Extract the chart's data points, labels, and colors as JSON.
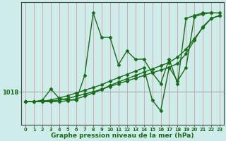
{
  "xlabel": "Graphe pression niveau de la mer (hPa)",
  "bg_color": "#cdecea",
  "line_color": "#1a6b1a",
  "tick_label_color": "#1a6b1a",
  "xlabel_color": "#1a6b1a",
  "ytick_value": 1018,
  "ytick_label": "1018",
  "xlim": [
    -0.5,
    23.5
  ],
  "ylim": [
    1012.0,
    1034.5
  ],
  "series": [
    {
      "x": [
        0,
        1,
        2,
        3,
        4,
        5,
        6,
        7,
        8,
        9,
        10,
        11,
        12,
        13,
        14,
        15,
        16,
        17,
        18,
        19,
        20,
        21,
        22
      ],
      "y": [
        1016.2,
        1016.2,
        1016.5,
        1018.5,
        1016.8,
        1016.5,
        1016.5,
        1021.0,
        1032.5,
        1028.0,
        1028.0,
        1023.0,
        1025.5,
        1024.0,
        1024.0,
        1021.5,
        1019.5,
        1024.0,
        1019.5,
        1031.5,
        1032.0,
        1032.5,
        1032.5
      ]
    },
    {
      "x": [
        0,
        1,
        2,
        3,
        4,
        5,
        6,
        7,
        8,
        9,
        10,
        11,
        12,
        13,
        14,
        15,
        16,
        17,
        18,
        19,
        20,
        21,
        22,
        23
      ],
      "y": [
        1016.2,
        1016.2,
        1016.2,
        1016.2,
        1016.2,
        1016.4,
        1016.7,
        1017.2,
        1017.8,
        1018.4,
        1019.2,
        1019.8,
        1020.4,
        1021.0,
        1021.6,
        1022.2,
        1022.8,
        1023.4,
        1024.4,
        1025.8,
        1027.8,
        1029.8,
        1031.5,
        1032.0
      ]
    },
    {
      "x": [
        0,
        1,
        2,
        3,
        4,
        5,
        6,
        7,
        8,
        9,
        10,
        11,
        12,
        13,
        14,
        15,
        16,
        17,
        18,
        19,
        20,
        21,
        22,
        23
      ],
      "y": [
        1016.2,
        1016.2,
        1016.2,
        1016.3,
        1016.5,
        1016.8,
        1017.2,
        1017.6,
        1018.0,
        1018.5,
        1019.0,
        1019.5,
        1020.0,
        1020.5,
        1021.0,
        1021.5,
        1022.0,
        1022.5,
        1023.2,
        1025.0,
        1027.5,
        1030.0,
        1031.5,
        1032.0
      ]
    },
    {
      "x": [
        0,
        1,
        2,
        3,
        4,
        5,
        6,
        7,
        8,
        9,
        10,
        11,
        12,
        13,
        14,
        15,
        16,
        17,
        18,
        19,
        20,
        21,
        22,
        23
      ],
      "y": [
        1016.2,
        1016.2,
        1016.3,
        1016.5,
        1016.9,
        1017.3,
        1017.8,
        1018.3,
        1018.8,
        1019.3,
        1020.0,
        1020.6,
        1021.2,
        1021.8,
        1022.4,
        1016.5,
        1014.5,
        1022.5,
        1020.0,
        1022.5,
        1031.8,
        1032.3,
        1032.5,
        1032.5
      ]
    }
  ],
  "xticks": [
    0,
    1,
    2,
    3,
    4,
    5,
    6,
    7,
    8,
    9,
    10,
    11,
    12,
    13,
    14,
    15,
    16,
    17,
    18,
    19,
    20,
    21,
    22,
    23
  ],
  "xtick_labels": [
    "0",
    "1",
    "2",
    "3",
    "4",
    "5",
    "6",
    "7",
    "8",
    "9",
    "10",
    "11",
    "12",
    "13",
    "14",
    "15",
    "16",
    "17",
    "18",
    "19",
    "20",
    "21",
    "22",
    "23"
  ],
  "marker": "D",
  "markersize": 2.5,
  "linewidth": 1.0,
  "vgrid_color": "#d4a0a0",
  "hgrid_color": "#999999"
}
